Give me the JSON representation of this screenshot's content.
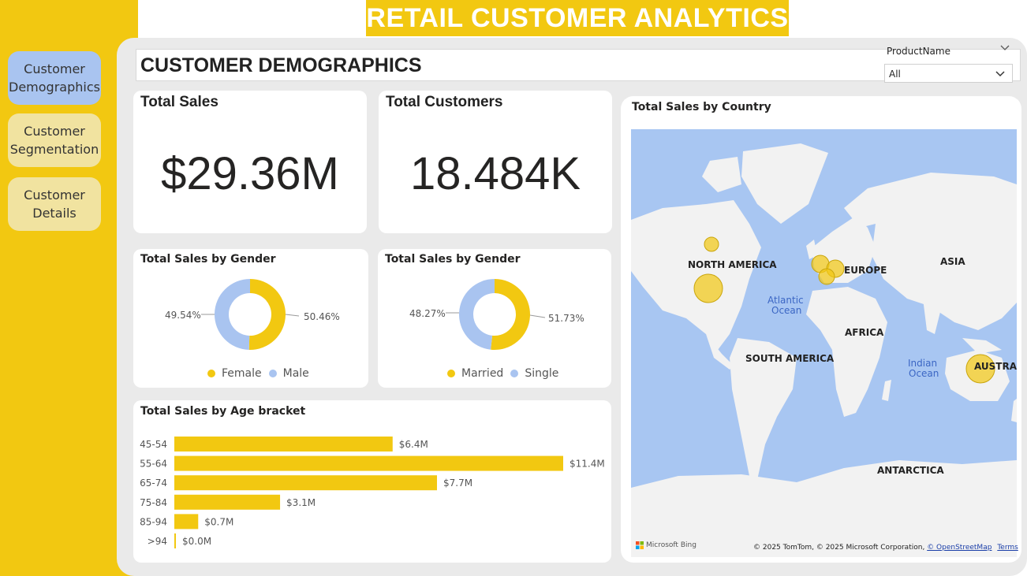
{
  "app_title": "RETAIL CUSTOMER ANALYTICS",
  "nav": [
    {
      "label": "Customer Demographics",
      "active": true
    },
    {
      "label": "Customer Segmentation",
      "active": false
    },
    {
      "label": "Customer Details",
      "active": false
    }
  ],
  "page_title": "CUSTOMER DEMOGRAPHICS",
  "slicer": {
    "label": "ProductName",
    "value": "All"
  },
  "kpis": {
    "sales": {
      "title": "Total Sales",
      "value": "$29.36M"
    },
    "customers": {
      "title": "Total Customers",
      "value": "18.484K"
    }
  },
  "gender_chart": {
    "title": "Total Sales by Gender",
    "left_pct": "49.54%",
    "right_pct": "50.46%",
    "legend": [
      "Female",
      "Male"
    ]
  },
  "marital_chart": {
    "title": "Total Sales by Gender",
    "left_pct": "48.27%",
    "right_pct": "51.73%",
    "legend": [
      "Married",
      "Single"
    ]
  },
  "age_chart_title": "Total Sales by Age bracket",
  "map": {
    "title": "Total Sales by Country",
    "labels": {
      "north_america": "NORTH AMERICA",
      "europe": "EUROPE",
      "asia": "ASIA",
      "africa": "AFRICA",
      "south_america": "SOUTH AMERICA",
      "antarctica": "ANTARCTICA",
      "australia": "AUSTRAL",
      "atlantic": "Atlantic",
      "ocean": "Ocean",
      "indian": "Indian",
      "ocean2": "Ocean"
    },
    "attribution": "© 2025 TomTom, © 2025 Microsoft Corporation,",
    "osm_link": "© OpenStreetMap",
    "terms_link": "Terms",
    "bing": "Microsoft Bing"
  },
  "colors": {
    "accent": "#f2c811",
    "secondary": "#a9c4f0",
    "nav_inactive": "#f1e3a0"
  },
  "chart_data": [
    {
      "type": "pie",
      "title": "Total Sales by Gender",
      "categories": [
        "Female",
        "Male"
      ],
      "values": [
        50.46,
        49.54
      ],
      "colors": [
        "#f2c811",
        "#a9c4f0"
      ]
    },
    {
      "type": "pie",
      "title": "Total Sales by Gender",
      "categories": [
        "Married",
        "Single"
      ],
      "values": [
        51.73,
        48.27
      ],
      "colors": [
        "#f2c811",
        "#a9c4f0"
      ]
    },
    {
      "type": "bar",
      "title": "Total Sales by Age bracket",
      "categories": [
        "45-54",
        "55-64",
        "65-74",
        "75-84",
        "85-94",
        ">94"
      ],
      "values": [
        6.4,
        11.4,
        7.7,
        3.1,
        0.7,
        0.0
      ],
      "labels": [
        "$6.4M",
        "$11.4M",
        "$7.7M",
        "$3.1M",
        "$0.7M",
        "$0.0M"
      ]
    }
  ]
}
